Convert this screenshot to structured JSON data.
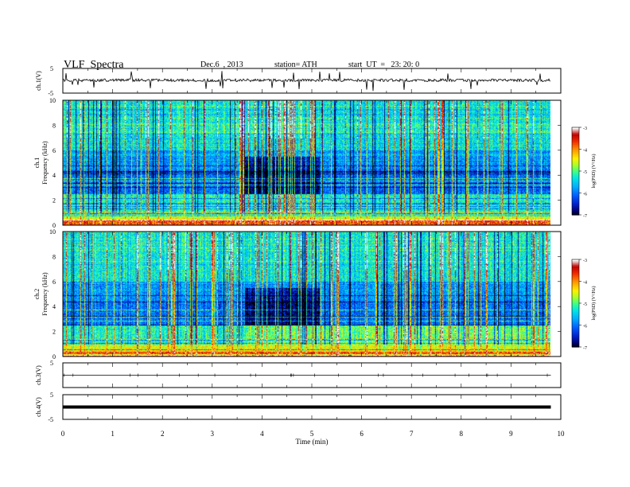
{
  "header": {
    "title": "VLF  Spectra",
    "date": "Dec.6  , 2013",
    "station": "station= ATH",
    "start": "start  UT  =   23: 20: 0"
  },
  "colorbar": {
    "label": "log(PSD) (V²/Hz)",
    "ticks": [
      "-3",
      "-4",
      "-5",
      "-6",
      "-7"
    ],
    "colors": [
      "#000000",
      "#001a8a",
      "#0033ff",
      "#0099ff",
      "#00d4ff",
      "#33ffcc",
      "#66ff66",
      "#ccff00",
      "#ffee00",
      "#ffaa00",
      "#ff3300",
      "#cc0000",
      "#ffffff"
    ]
  },
  "chart_data": [
    {
      "type": "line",
      "panel": "ch.1",
      "ylabel": "ch.1(V)",
      "ylim": [
        -5,
        5
      ],
      "yticks": [
        "5",
        "-5"
      ],
      "x": [
        0,
        1,
        2,
        3,
        4,
        5,
        6,
        7,
        8,
        9,
        9.8
      ],
      "values": [
        0.2,
        0.1,
        0.2,
        0.1,
        0.2,
        0.1,
        0.2,
        0.1,
        0.2,
        0.1,
        0.1
      ]
    },
    {
      "type": "heatmap",
      "panel": "ch.1",
      "ylabel_line1": "ch.1",
      "ylabel_line2": "Frequency  (kHz)",
      "ylim": [
        0,
        10
      ],
      "yticks": [
        "10",
        "8",
        "6",
        "4",
        "2",
        "0"
      ],
      "xlim": [
        0,
        10
      ],
      "zlim": [
        -7,
        -3
      ],
      "zlabel": "log(PSD) (V²/Hz)"
    },
    {
      "type": "heatmap",
      "panel": "ch.2",
      "ylabel_line1": "ch.2",
      "ylabel_line2": "Frequency  (kHz)",
      "ylim": [
        0,
        10
      ],
      "yticks": [
        "10",
        "8",
        "6",
        "4",
        "2",
        "0"
      ],
      "xlim": [
        0,
        10
      ],
      "zlim": [
        -7,
        -3
      ],
      "zlabel": "log(PSD) (V²/Hz)"
    },
    {
      "type": "line",
      "panel": "ch.3",
      "ylabel": "ch.3(V)",
      "ylim": [
        -5,
        5
      ],
      "yticks": [
        "5"
      ],
      "x": [
        0,
        9.8
      ],
      "values": [
        0,
        0
      ]
    },
    {
      "type": "line",
      "panel": "ch.4",
      "ylabel": "ch.4(V)",
      "ylim": [
        -5,
        5
      ],
      "yticks": [
        "5",
        "-5"
      ],
      "x": [
        0,
        9.8
      ],
      "values": [
        0,
        0
      ]
    }
  ],
  "xaxis": {
    "label": "Time  (min)",
    "ticks": [
      "0",
      "1",
      "2",
      "3",
      "4",
      "5",
      "6",
      "7",
      "8",
      "9",
      "10"
    ],
    "xlim": [
      0,
      10
    ],
    "data_end": 9.8
  }
}
